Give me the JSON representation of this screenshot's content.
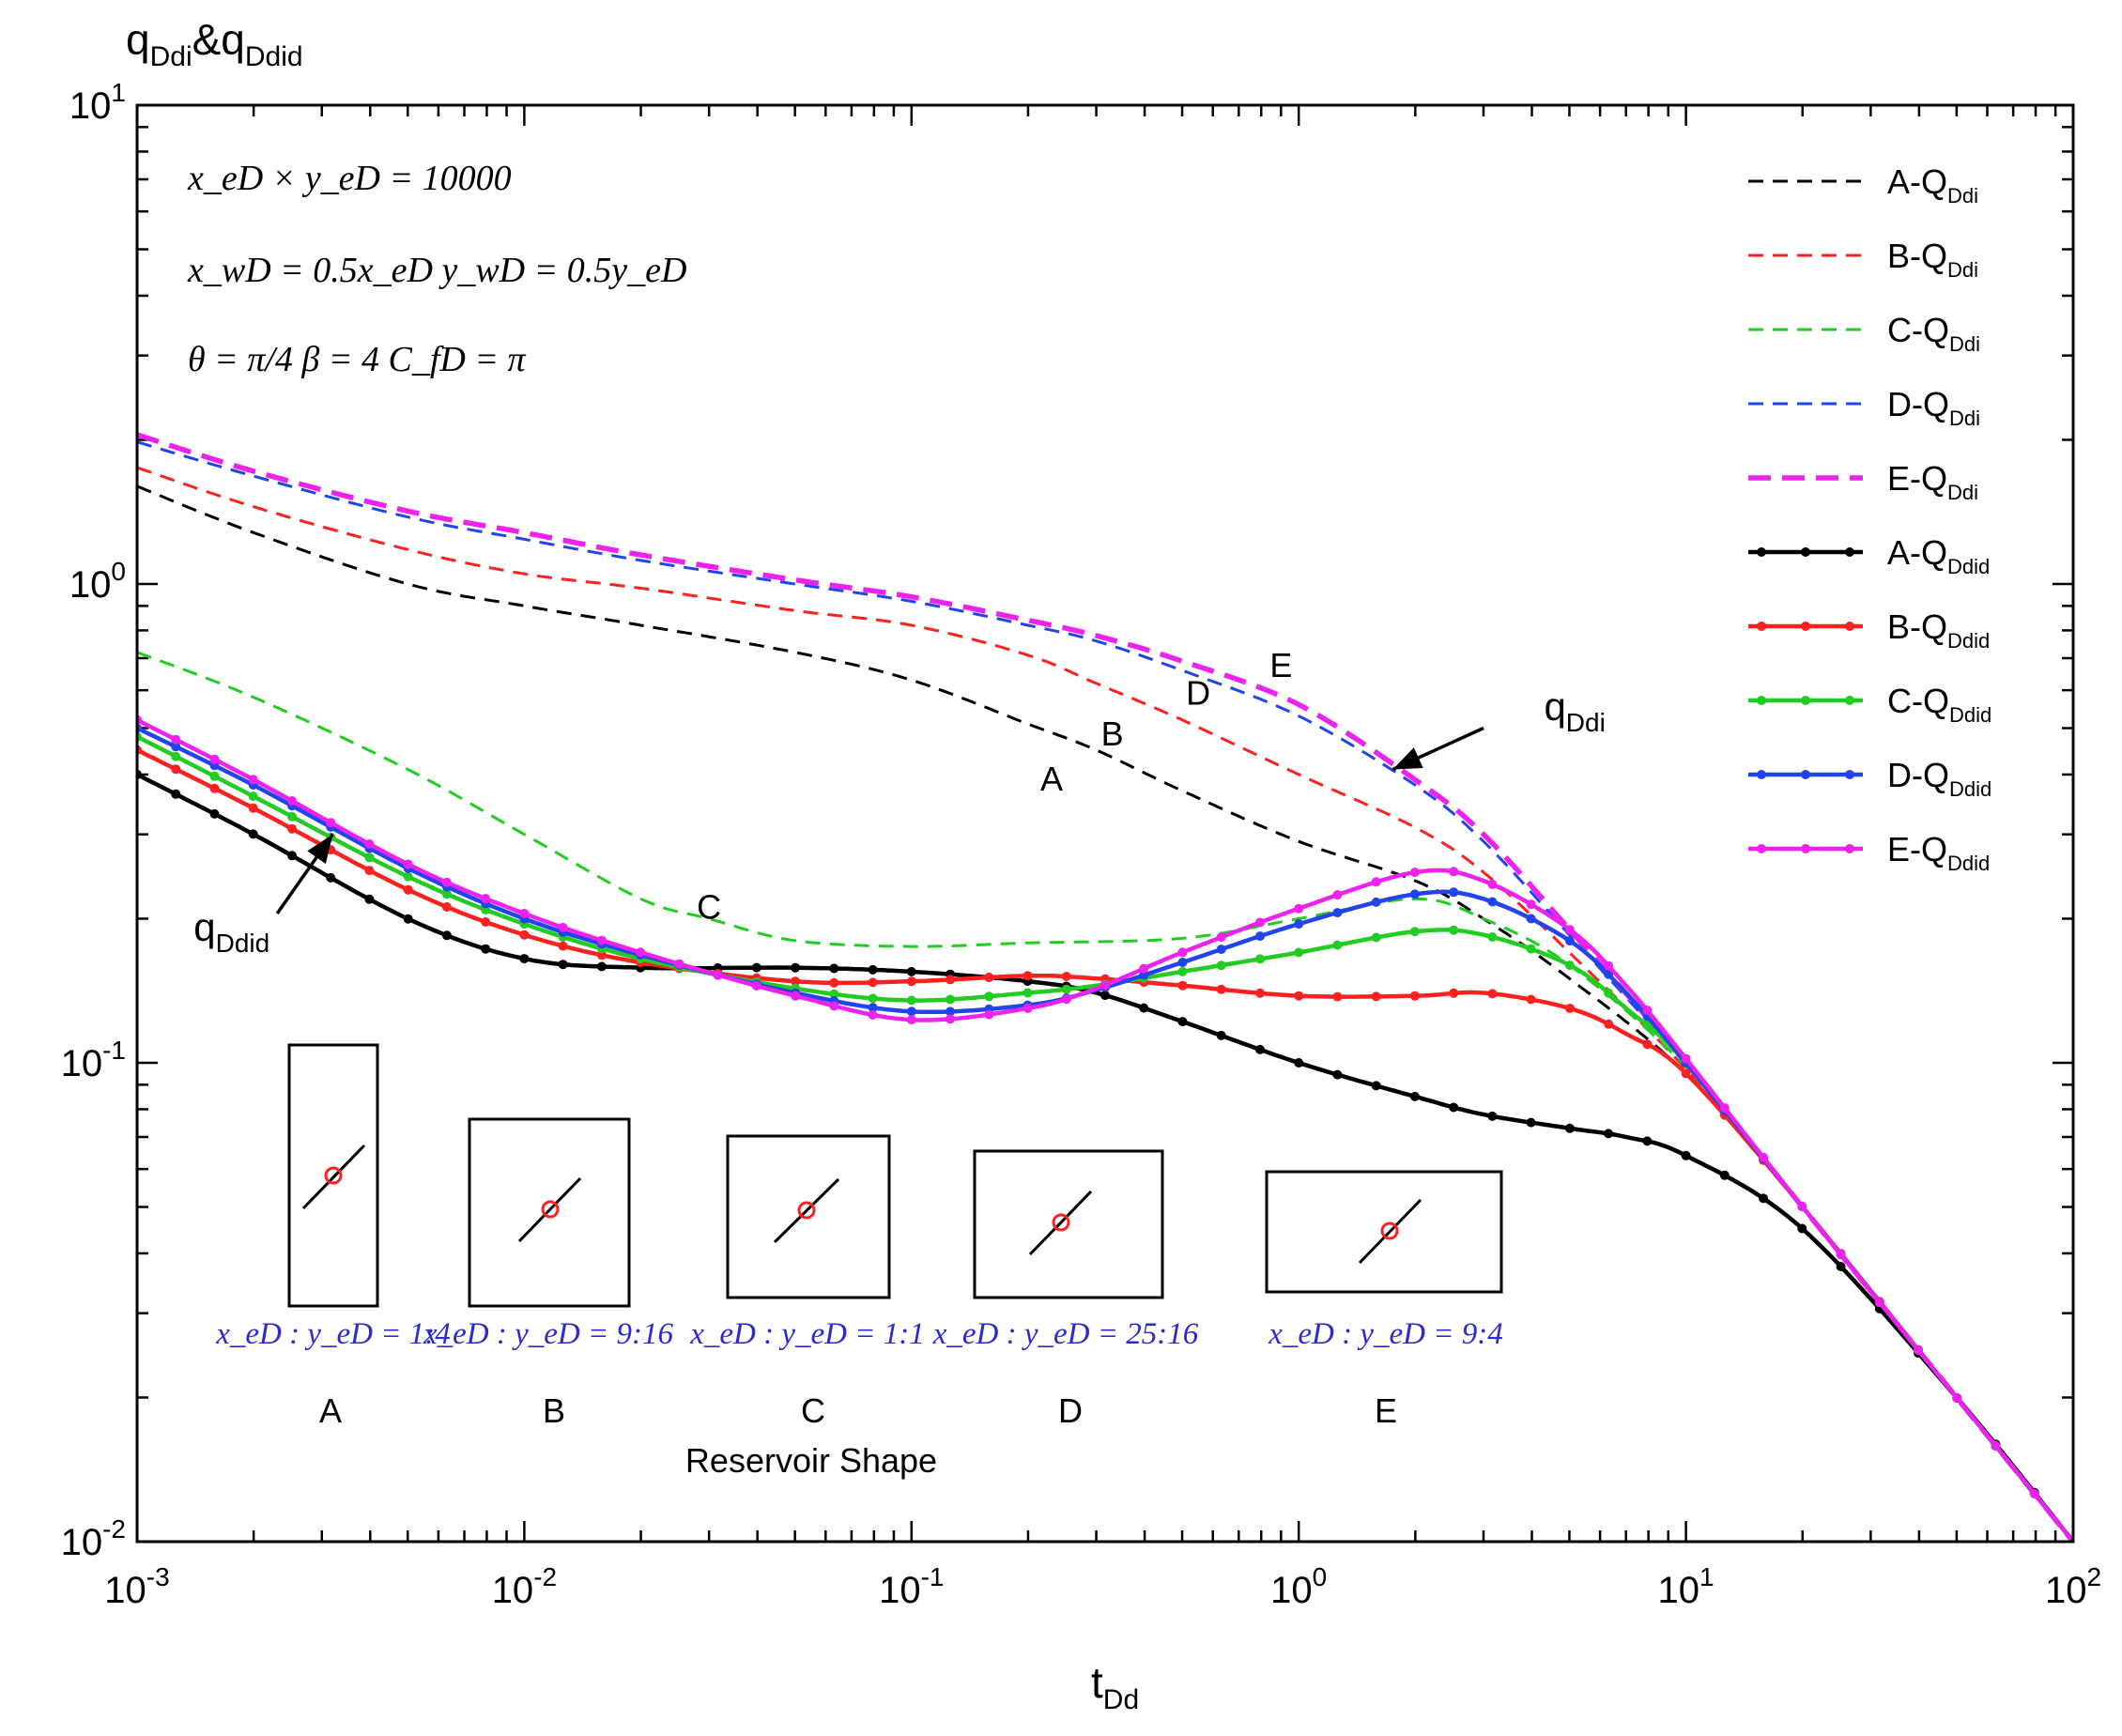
{
  "chart_data": {
    "type": "line",
    "scale": "log-log",
    "y_title": {
      "main": "q",
      "sub1": "Ddi",
      "amp": "&q",
      "sub2": "Ddid"
    },
    "x_title": {
      "main": "t",
      "sub": "Dd"
    },
    "xlim": [
      0.001,
      100
    ],
    "ylim": [
      0.01,
      10
    ],
    "x_ticks": [
      {
        "base": "10",
        "exp": "-3",
        "value": 0.001
      },
      {
        "base": "10",
        "exp": "-2",
        "value": 0.01
      },
      {
        "base": "10",
        "exp": "-1",
        "value": 0.1
      },
      {
        "base": "10",
        "exp": "0",
        "value": 1
      },
      {
        "base": "10",
        "exp": "1",
        "value": 10
      },
      {
        "base": "10",
        "exp": "2",
        "value": 100
      }
    ],
    "y_ticks": [
      {
        "base": "10",
        "exp": "-2",
        "value": 0.01
      },
      {
        "base": "10",
        "exp": "-1",
        "value": 0.1
      },
      {
        "base": "10",
        "exp": "0",
        "value": 1
      },
      {
        "base": "10",
        "exp": "1",
        "value": 10
      }
    ],
    "parameters": {
      "line1": "x_eD × y_eD = 10000",
      "line2": "x_wD = 0.5x_eD   y_wD = 0.5y_eD",
      "line3": "θ = π/4   β = 4   C_fD = π"
    },
    "series": [
      {
        "name": "A-Q",
        "sub": "Ddi",
        "color": "#000000",
        "style": "dashed",
        "x": [
          0.001,
          0.002,
          0.005,
          0.01,
          0.02,
          0.05,
          0.1,
          0.2,
          0.3,
          0.5,
          1,
          2,
          3,
          5,
          10,
          20,
          50,
          100
        ],
        "y": [
          1.6,
          1.28,
          1.0,
          0.9,
          0.82,
          0.72,
          0.63,
          0.51,
          0.45,
          0.37,
          0.29,
          0.24,
          0.2,
          0.15,
          0.095,
          0.05,
          0.02,
          0.01
        ]
      },
      {
        "name": "B-Q",
        "sub": "Ddi",
        "color": "#ff2020",
        "style": "dashed",
        "x": [
          0.001,
          0.002,
          0.005,
          0.01,
          0.02,
          0.05,
          0.1,
          0.2,
          0.3,
          0.5,
          1,
          2,
          3,
          5,
          10,
          20,
          50,
          100
        ],
        "y": [
          1.75,
          1.45,
          1.18,
          1.05,
          0.98,
          0.88,
          0.82,
          0.71,
          0.62,
          0.52,
          0.4,
          0.31,
          0.25,
          0.17,
          0.097,
          0.05,
          0.02,
          0.01
        ]
      },
      {
        "name": "C-Q",
        "sub": "Ddi",
        "color": "#22cc22",
        "style": "dashed",
        "x": [
          0.001,
          0.002,
          0.005,
          0.01,
          0.02,
          0.03,
          0.05,
          0.1,
          0.2,
          0.5,
          1,
          2,
          3,
          5,
          10,
          20,
          50,
          100
        ],
        "y": [
          0.72,
          0.58,
          0.41,
          0.3,
          0.22,
          0.2,
          0.18,
          0.175,
          0.178,
          0.182,
          0.2,
          0.22,
          0.2,
          0.16,
          0.098,
          0.05,
          0.02,
          0.01
        ]
      },
      {
        "name": "D-Q",
        "sub": "Ddi",
        "color": "#2244ee",
        "style": "dashed",
        "x": [
          0.001,
          0.002,
          0.005,
          0.01,
          0.02,
          0.05,
          0.1,
          0.2,
          0.3,
          0.5,
          1,
          2,
          3,
          5,
          10,
          20,
          50,
          100
        ],
        "y": [
          1.98,
          1.68,
          1.38,
          1.24,
          1.12,
          1.0,
          0.92,
          0.82,
          0.76,
          0.66,
          0.53,
          0.38,
          0.29,
          0.185,
          0.099,
          0.05,
          0.02,
          0.01
        ]
      },
      {
        "name": "E-Q",
        "sub": "Ddi",
        "color": "#ee22ee",
        "style": "dashed-thick",
        "x": [
          0.001,
          0.002,
          0.005,
          0.01,
          0.02,
          0.05,
          0.1,
          0.2,
          0.3,
          0.5,
          1,
          2,
          3,
          5,
          10,
          20,
          50,
          100
        ],
        "y": [
          2.05,
          1.72,
          1.42,
          1.28,
          1.15,
          1.02,
          0.94,
          0.84,
          0.78,
          0.69,
          0.56,
          0.39,
          0.3,
          0.19,
          0.1,
          0.05,
          0.02,
          0.01
        ]
      },
      {
        "name": "A-Q",
        "sub": "Ddid",
        "color": "#000000",
        "style": "solid-markers",
        "x": [
          0.001,
          0.002,
          0.005,
          0.01,
          0.02,
          0.05,
          0.1,
          0.2,
          0.3,
          0.5,
          1,
          2,
          3,
          5,
          7,
          10,
          20,
          50,
          100
        ],
        "y": [
          0.4,
          0.3,
          0.2,
          0.165,
          0.158,
          0.158,
          0.155,
          0.148,
          0.14,
          0.122,
          0.1,
          0.085,
          0.078,
          0.073,
          0.07,
          0.064,
          0.045,
          0.02,
          0.01
        ]
      },
      {
        "name": "B-Q",
        "sub": "Ddid",
        "color": "#ff2020",
        "style": "solid-markers",
        "x": [
          0.001,
          0.002,
          0.005,
          0.01,
          0.02,
          0.05,
          0.1,
          0.2,
          0.3,
          0.5,
          1,
          2,
          3,
          5,
          7,
          10,
          20,
          50,
          100
        ],
        "y": [
          0.45,
          0.34,
          0.23,
          0.185,
          0.162,
          0.148,
          0.148,
          0.152,
          0.15,
          0.145,
          0.138,
          0.138,
          0.14,
          0.13,
          0.115,
          0.095,
          0.05,
          0.02,
          0.01
        ]
      },
      {
        "name": "C-Q",
        "sub": "Ddid",
        "color": "#22cc22",
        "style": "solid-markers",
        "x": [
          0.001,
          0.002,
          0.005,
          0.01,
          0.02,
          0.05,
          0.1,
          0.2,
          0.3,
          0.5,
          1,
          2,
          3,
          5,
          7,
          10,
          20,
          50,
          100
        ],
        "y": [
          0.48,
          0.36,
          0.245,
          0.195,
          0.165,
          0.143,
          0.135,
          0.14,
          0.145,
          0.155,
          0.17,
          0.188,
          0.185,
          0.16,
          0.13,
          0.1,
          0.05,
          0.02,
          0.01
        ]
      },
      {
        "name": "D-Q",
        "sub": "Ddid",
        "color": "#2244ee",
        "style": "solid-markers",
        "x": [
          0.001,
          0.002,
          0.005,
          0.01,
          0.02,
          0.05,
          0.1,
          0.2,
          0.3,
          0.5,
          1,
          2,
          3,
          5,
          7,
          10,
          20,
          50,
          100
        ],
        "y": [
          0.5,
          0.38,
          0.255,
          0.2,
          0.168,
          0.14,
          0.128,
          0.132,
          0.142,
          0.162,
          0.195,
          0.225,
          0.22,
          0.18,
          0.14,
          0.1,
          0.05,
          0.02,
          0.01
        ]
      },
      {
        "name": "E-Q",
        "sub": "Ddid",
        "color": "#ee22ee",
        "style": "solid-markers",
        "x": [
          0.001,
          0.002,
          0.005,
          0.01,
          0.02,
          0.05,
          0.1,
          0.2,
          0.3,
          0.5,
          1,
          2,
          3,
          5,
          7,
          10,
          20,
          50,
          100
        ],
        "y": [
          0.52,
          0.39,
          0.26,
          0.205,
          0.17,
          0.138,
          0.123,
          0.13,
          0.143,
          0.17,
          0.21,
          0.25,
          0.24,
          0.19,
          0.145,
          0.102,
          0.05,
          0.02,
          0.01
        ]
      }
    ],
    "annotations": [
      {
        "text": "A",
        "x": 0.23,
        "y": 0.37
      },
      {
        "text": "B",
        "x": 0.33,
        "y": 0.46
      },
      {
        "text": "C",
        "x": 0.03,
        "y": 0.2
      },
      {
        "text": "D",
        "x": 0.55,
        "y": 0.56
      },
      {
        "text": "E",
        "x": 0.9,
        "y": 0.64
      }
    ],
    "arrow_labels": [
      {
        "main": "q",
        "sub": "Ddi",
        "from_x": 3.0,
        "from_y": 0.5,
        "to_x": 1.75,
        "to_y": 0.41,
        "text_x": 4.3,
        "text_y": 0.52
      },
      {
        "main": "q",
        "sub": "Ddid",
        "from_x": 0.0023,
        "from_y": 0.205,
        "to_x": 0.0032,
        "to_y": 0.3,
        "text_x": 0.0014,
        "text_y": 0.18
      }
    ],
    "inset_title": "Reservoir Shape",
    "reservoirs": [
      {
        "label": "A",
        "ratio": "x_eD : y_eD = 1:4"
      },
      {
        "label": "B",
        "ratio": "x_eD : y_eD = 9:16"
      },
      {
        "label": "C",
        "ratio": "x_eD : y_eD = 1:1"
      },
      {
        "label": "D",
        "ratio": "x_eD : y_eD = 25:16"
      },
      {
        "label": "E",
        "ratio": "x_eD : y_eD = 9:4"
      }
    ]
  }
}
